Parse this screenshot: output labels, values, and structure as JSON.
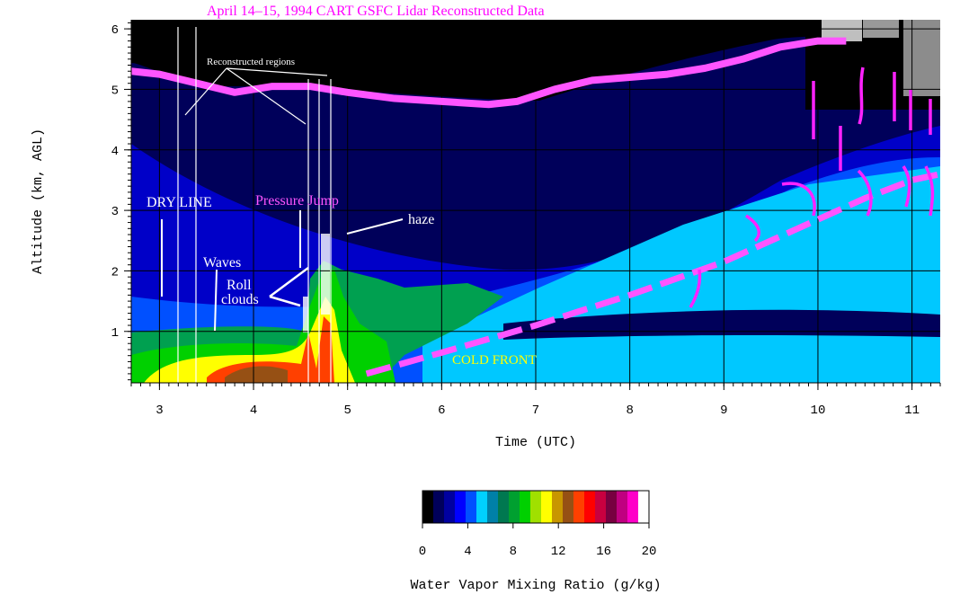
{
  "chart_data": {
    "type": "heatmap",
    "title": "April 14–15, 1994   CART  GSFC Lidar  Reconstructed Data",
    "xlabel": "Time (UTC)",
    "ylabel": "Altitude (km, AGL)",
    "xlim": [
      2.7,
      11.3
    ],
    "ylim": [
      0.15,
      6.15
    ],
    "x_ticks": [
      "3",
      "4",
      "5",
      "6",
      "7",
      "8",
      "9",
      "10",
      "11"
    ],
    "y_ticks": [
      "1",
      "2",
      "3",
      "4",
      "5",
      "6"
    ],
    "grid": true,
    "colorbar": {
      "label": "Water Vapor Mixing Ratio (g/kg)",
      "range": [
        0,
        20
      ],
      "tick_labels": [
        "0",
        "4",
        "8",
        "12",
        "16",
        "20"
      ],
      "colors": [
        "#000000",
        "#00005a",
        "#0000a0",
        "#0000ff",
        "#0050ff",
        "#00d0ff",
        "#0080a8",
        "#007850",
        "#00a030",
        "#00d000",
        "#a0e000",
        "#ffff00",
        "#c89600",
        "#965014",
        "#ff4000",
        "#ff0000",
        "#c80040",
        "#780040",
        "#c00080",
        "#ff00c8",
        "#ffffff"
      ]
    },
    "boundary_layer_top": {
      "name": "",
      "x": [
        2.7,
        3.0,
        3.4,
        3.8,
        4.2,
        4.6,
        5.0,
        5.5,
        6.0,
        6.5,
        6.8,
        7.2,
        7.6,
        8.0,
        8.4,
        8.8,
        9.2,
        9.6,
        10.0,
        10.3
      ],
      "y": [
        5.3,
        5.25,
        5.1,
        4.95,
        5.05,
        5.05,
        4.95,
        4.85,
        4.8,
        4.75,
        4.8,
        5.0,
        5.15,
        5.2,
        5.25,
        5.35,
        5.5,
        5.7,
        5.8,
        5.8
      ]
    },
    "front_line": {
      "name": "",
      "x": [
        5.2,
        6.0,
        7.0,
        8.0,
        9.0,
        9.5,
        10.0,
        10.5,
        11.0,
        11.3
      ],
      "y": [
        0.3,
        0.65,
        1.1,
        1.6,
        2.15,
        2.5,
        2.85,
        3.2,
        3.5,
        3.6
      ]
    },
    "annotations": {
      "reconstructed_regions": "Reconstructed regions",
      "dry_line": "DRY LINE",
      "pressure_jump": "Pressure Jump",
      "haze": "haze",
      "waves": "Waves",
      "roll": "Roll",
      "clouds": "clouds",
      "cold_front": "COLD FRONT"
    }
  }
}
